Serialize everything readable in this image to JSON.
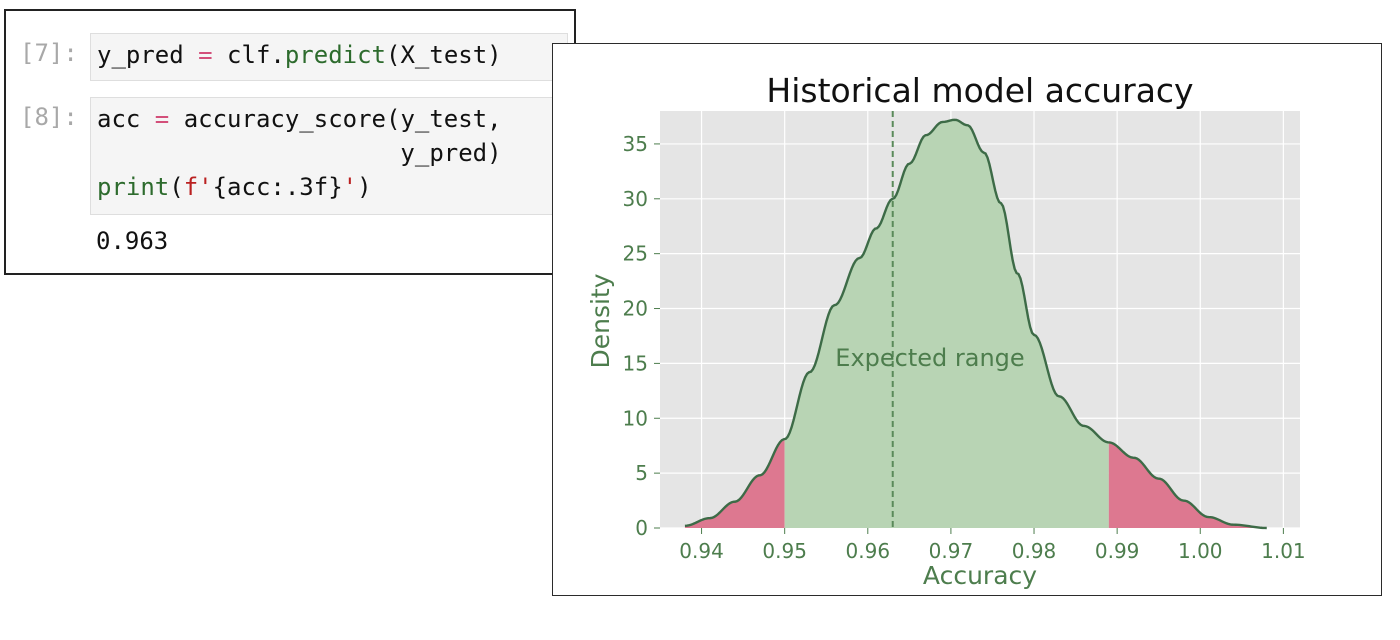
{
  "notebook": {
    "cells": [
      {
        "prompt": "[7]:",
        "lines": [
          [
            {
              "t": "y_pred ",
              "c": "plain"
            },
            {
              "t": "=",
              "c": "op"
            },
            {
              "t": " clf.",
              "c": "plain"
            },
            {
              "t": "predict",
              "c": "fn"
            },
            {
              "t": "(X_test)",
              "c": "plain"
            }
          ]
        ]
      },
      {
        "prompt": "[8]:",
        "lines": [
          [
            {
              "t": "acc ",
              "c": "plain"
            },
            {
              "t": "=",
              "c": "op"
            },
            {
              "t": " accuracy_score(y_test,",
              "c": "plain"
            }
          ],
          [
            {
              "t": "                     y_pred)",
              "c": "plain"
            }
          ],
          [
            {
              "t": "print",
              "c": "kw"
            },
            {
              "t": "(",
              "c": "plain"
            },
            {
              "t": "f'",
              "c": "str"
            },
            {
              "t": "{acc:.3f}",
              "c": "plain"
            },
            {
              "t": "'",
              "c": "str"
            },
            {
              "t": ")",
              "c": "plain"
            }
          ]
        ],
        "output": "0.963"
      }
    ]
  },
  "chart_data": {
    "type": "area",
    "title": "Historical model accuracy",
    "xlabel": "Accuracy",
    "ylabel": "Density",
    "xlim": [
      0.935,
      1.012
    ],
    "ylim": [
      0,
      38
    ],
    "xticks": [
      0.94,
      0.95,
      0.96,
      0.97,
      0.98,
      0.99,
      1.0,
      1.01
    ],
    "xtick_labels": [
      "0.94",
      "0.95",
      "0.96",
      "0.97",
      "0.98",
      "0.99",
      "1.00",
      "1.01"
    ],
    "yticks": [
      0,
      5,
      10,
      15,
      20,
      25,
      30,
      35
    ],
    "ytick_labels": [
      "0",
      "5",
      "10",
      "15",
      "20",
      "25",
      "30",
      "35"
    ],
    "grid": true,
    "density_curve": {
      "x": [
        0.938,
        0.941,
        0.944,
        0.947,
        0.95,
        0.953,
        0.956,
        0.959,
        0.961,
        0.963,
        0.965,
        0.967,
        0.969,
        0.9705,
        0.972,
        0.974,
        0.976,
        0.978,
        0.98,
        0.983,
        0.986,
        0.989,
        0.992,
        0.995,
        0.998,
        1.001,
        1.004,
        1.008
      ],
      "y": [
        0.2,
        0.9,
        2.4,
        4.8,
        8.1,
        14.2,
        20.3,
        24.6,
        27.3,
        30.0,
        33.2,
        35.8,
        37.0,
        37.2,
        36.7,
        34.2,
        29.6,
        23.2,
        17.6,
        12.0,
        9.3,
        7.8,
        6.4,
        4.5,
        2.5,
        1.0,
        0.3,
        0.0
      ]
    },
    "expected_range": [
      0.95,
      0.989
    ],
    "expected_range_label": "Expected range",
    "reference_line_x": 0.963,
    "colors": {
      "inside_fill": "#b8d4b4",
      "outside_fill": "#dd7890",
      "curve": "#3d6b47",
      "reference_line": "#5a8a5a",
      "plot_bg": "#e5e5e5",
      "grid": "#ffffff",
      "text": "#4d7d4d",
      "title": "#111111"
    }
  }
}
